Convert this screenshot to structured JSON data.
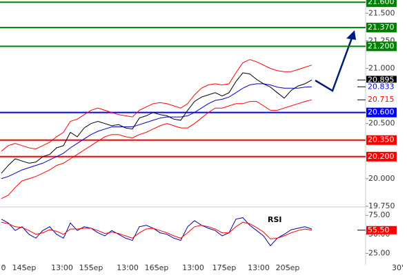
{
  "chart_data": [
    {
      "type": "line",
      "ylim": [
        19.75,
        21.62
      ],
      "xlim": [
        0,
        45
      ],
      "yticks": [
        {
          "value": 19.75,
          "label": "19.750"
        },
        {
          "value": 20,
          "label": "20.000"
        },
        {
          "value": 20.5,
          "label": "20.500"
        },
        {
          "value": 21,
          "label": "21.000"
        },
        {
          "value": 21.25,
          "label": "21.250"
        },
        {
          "value": 21.5,
          "label": "21.500"
        }
      ],
      "levels": [
        {
          "value": 21.6,
          "label": "21.600",
          "color": "#008000"
        },
        {
          "value": 21.37,
          "label": "21.370",
          "color": "#008000"
        },
        {
          "value": 21.2,
          "label": "21.200",
          "color": "#008000"
        },
        {
          "value": 20.6,
          "label": "20.600",
          "color": "#0000ff"
        },
        {
          "value": 20.35,
          "label": "20.350",
          "color": "#ff0000"
        },
        {
          "value": 20.2,
          "label": "20.200",
          "color": "#ff0000"
        }
      ],
      "price_labels": [
        {
          "value": 20.895,
          "label": "20.895",
          "color": "#ffffff",
          "background": "#000000"
        },
        {
          "value": 20.833,
          "label": "20.833",
          "color": "#0000ff",
          "background": "#ffffff"
        },
        {
          "value": 20.715,
          "label": "20.715",
          "color": "#ff0000",
          "background": "#ffffff"
        }
      ],
      "series": [
        {
          "color": "#ff0000",
          "values": [
            20.25,
            20.3,
            20.32,
            20.3,
            20.28,
            20.27,
            20.3,
            20.33,
            20.38,
            20.42,
            20.52,
            20.54,
            20.58,
            20.62,
            20.64,
            20.62,
            20.6,
            20.58,
            20.57,
            20.56,
            20.62,
            20.65,
            20.68,
            20.69,
            20.68,
            20.66,
            20.64,
            20.68,
            20.76,
            20.82,
            20.85,
            20.86,
            20.85,
            20.86,
            20.96,
            21.05,
            21.08,
            21.06,
            21.03,
            21.0,
            20.98,
            20.97,
            20.97,
            20.99,
            21.01,
            21.03
          ]
        },
        {
          "color": "#ff0000",
          "values": [
            19.82,
            19.85,
            19.92,
            19.98,
            20.0,
            20.02,
            20.05,
            20.08,
            20.12,
            20.14,
            20.18,
            20.22,
            20.26,
            20.3,
            20.34,
            20.38,
            20.4,
            20.4,
            20.38,
            20.37,
            20.4,
            20.42,
            20.45,
            20.48,
            20.5,
            20.48,
            20.46,
            20.46,
            20.5,
            20.55,
            20.6,
            20.64,
            20.64,
            20.66,
            20.68,
            20.68,
            20.7,
            20.7,
            20.66,
            20.62,
            20.62,
            20.64,
            20.66,
            20.68,
            20.7,
            20.715
          ]
        },
        {
          "color": "#0000cc",
          "values": [
            20.0,
            20.02,
            20.05,
            20.08,
            20.1,
            20.12,
            20.14,
            20.17,
            20.2,
            20.23,
            20.28,
            20.32,
            20.36,
            20.4,
            20.43,
            20.45,
            20.47,
            20.47,
            20.47,
            20.47,
            20.49,
            20.51,
            20.53,
            20.55,
            20.56,
            20.56,
            20.56,
            20.57,
            20.6,
            20.64,
            20.68,
            20.71,
            20.72,
            20.74,
            20.78,
            20.82,
            20.85,
            20.86,
            20.86,
            20.85,
            20.83,
            20.82,
            20.82,
            20.82,
            20.83,
            20.833
          ]
        },
        {
          "color": "#000000",
          "values": [
            20.05,
            20.12,
            20.18,
            20.16,
            20.14,
            20.15,
            20.2,
            20.22,
            20.28,
            20.3,
            20.42,
            20.38,
            20.46,
            20.5,
            20.52,
            20.5,
            20.48,
            20.49,
            20.46,
            20.45,
            20.55,
            20.57,
            20.6,
            20.58,
            20.57,
            20.54,
            20.53,
            20.62,
            20.7,
            20.74,
            20.76,
            20.78,
            20.75,
            20.78,
            20.88,
            20.96,
            20.95,
            20.9,
            20.86,
            20.83,
            20.78,
            20.73,
            20.8,
            20.84,
            20.86,
            20.895
          ]
        }
      ]
    },
    {
      "type": "line",
      "title": "RSI",
      "ylim": [
        10,
        87
      ],
      "xlim": [
        0,
        45
      ],
      "yticks": [
        {
          "value": 25,
          "label": "25.00"
        },
        {
          "value": 50,
          "label": "50.00"
        },
        {
          "value": 75,
          "label": "75.00"
        }
      ],
      "price_labels": [
        {
          "value": 55.5,
          "label": "55.50",
          "color": "#ffffff",
          "background": "#ff0000"
        }
      ],
      "xticks": [
        {
          "value": 0.3,
          "label": "0"
        },
        {
          "value": 3.3,
          "label": "14Sep"
        },
        {
          "value": 8.8,
          "label": "13:00"
        },
        {
          "value": 13,
          "label": "15Sep"
        },
        {
          "value": 18.3,
          "label": "13:00"
        },
        {
          "value": 22.5,
          "label": "16Sep"
        },
        {
          "value": 27.8,
          "label": "13:00"
        },
        {
          "value": 32.3,
          "label": "17Sep"
        },
        {
          "value": 37.3,
          "label": "13:00"
        },
        {
          "value": 41.5,
          "label": "20Sep"
        }
      ],
      "timeframe": "30'",
      "series": [
        {
          "color": "#0000aa",
          "values": [
            70,
            65,
            55,
            60,
            50,
            45,
            55,
            60,
            50,
            45,
            65,
            55,
            60,
            58,
            52,
            48,
            55,
            50,
            45,
            42,
            60,
            62,
            58,
            52,
            50,
            45,
            42,
            60,
            68,
            62,
            58,
            55,
            48,
            52,
            70,
            72,
            62,
            55,
            48,
            35,
            45,
            50,
            56,
            58,
            60,
            57
          ]
        },
        {
          "color": "#ff0000",
          "values": [
            66,
            64,
            60,
            59,
            55,
            50,
            52,
            56,
            54,
            50,
            57,
            57,
            58,
            58,
            55,
            51,
            53,
            51,
            48,
            45,
            52,
            57,
            58,
            55,
            52,
            48,
            45,
            52,
            60,
            62,
            60,
            57,
            52,
            52,
            60,
            66,
            64,
            59,
            53,
            44,
            45,
            48,
            52,
            55,
            57,
            55.5
          ]
        }
      ]
    }
  ]
}
